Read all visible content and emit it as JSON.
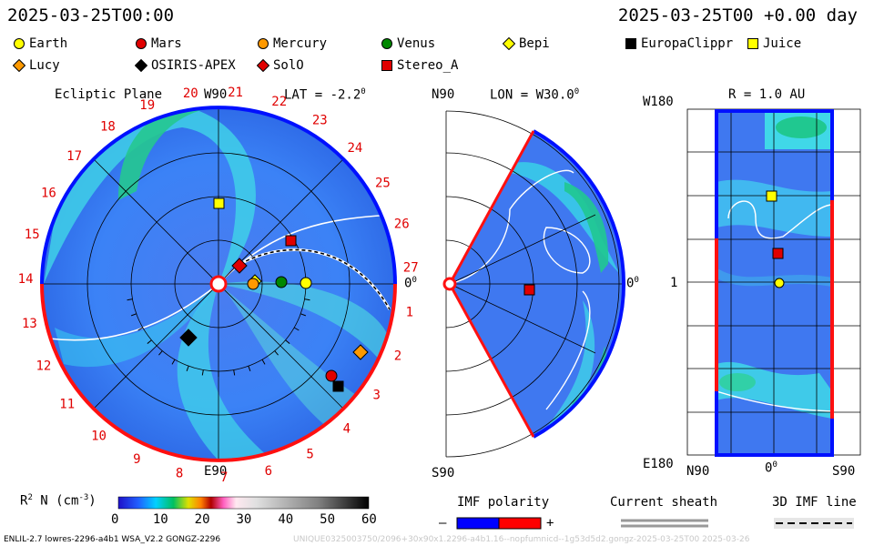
{
  "header": {
    "left_datetime": "2025-03-25T00:00",
    "right_datetime": "2025-03-25T00 +0.00 day"
  },
  "legend": [
    {
      "label": "Earth",
      "shape": "circle",
      "color": "#ffff00"
    },
    {
      "label": "Mars",
      "shape": "circle",
      "color": "#e00000"
    },
    {
      "label": "Mercury",
      "shape": "circle",
      "color": "#ff9900"
    },
    {
      "label": "Venus",
      "shape": "circle",
      "color": "#008800"
    },
    {
      "label": "Bepi",
      "shape": "diamond",
      "color": "#ffff00"
    },
    {
      "label": "EuropaClippr",
      "shape": "square",
      "color": "#000000"
    },
    {
      "label": "Juice",
      "shape": "square",
      "color": "#ffff00"
    },
    {
      "label": "Lucy",
      "shape": "diamond",
      "color": "#ff9900"
    },
    {
      "label": "OSIRIS-APEX",
      "shape": "diamond",
      "color": "#000000"
    },
    {
      "label": "SolO",
      "shape": "diamond",
      "color": "#e00000"
    },
    {
      "label": "Stereo_A",
      "shape": "square",
      "color": "#e00000"
    }
  ],
  "ecliptic": {
    "title": "Ecliptic Plane",
    "top_label": "W90",
    "bottom_label": "E90",
    "right_label": "0",
    "right_label_sup": "0",
    "lat_label": "LAT = -2.2",
    "lat_sup": "0",
    "carrington_ticks": [
      "20",
      "21",
      "22",
      "23",
      "24",
      "25",
      "26",
      "27",
      "1",
      "2",
      "3",
      "4",
      "5",
      "6",
      "7",
      "8",
      "9",
      "10",
      "11",
      "12",
      "13",
      "14",
      "15",
      "16",
      "17",
      "18",
      "19"
    ]
  },
  "meridional": {
    "top_label": "N90",
    "bottom_label": "S90",
    "lon_label": "LON = W30.0",
    "lon_sup": "0",
    "right_label": "0",
    "right_sup": "0"
  },
  "map": {
    "title": "R = 1.0 AU",
    "top_left": "W180",
    "bottom_left": "E180",
    "mid_left": "1",
    "bottom_ticks": [
      "N90",
      "0",
      "S90"
    ],
    "bottom_mid_sup": "0"
  },
  "colorbar": {
    "label": "R",
    "label_sup": "2",
    "label_rest": " N (cm",
    "label_exp": "-3",
    "label_end": ")",
    "ticks": [
      "0",
      "10",
      "20",
      "30",
      "40",
      "50",
      "60"
    ]
  },
  "imf": {
    "title": "IMF polarity",
    "minus": "–",
    "plus": "+",
    "negative_color": "#0000ff",
    "positive_color": "#ff0000"
  },
  "sheath": {
    "title": "Current sheath"
  },
  "imf3d": {
    "title": "3D IMF line"
  },
  "footer": {
    "left": "ENLIL-2.7 lowres-2296-a4b1 WSA_V2.2 GONGZ-2296",
    "right": "UNIQUE0325003750/2096+30x90x1.2296-a4b1.16--nopfumnicd--1g53d5d2.gongz-2025-03-25T00 2025-03-26"
  }
}
